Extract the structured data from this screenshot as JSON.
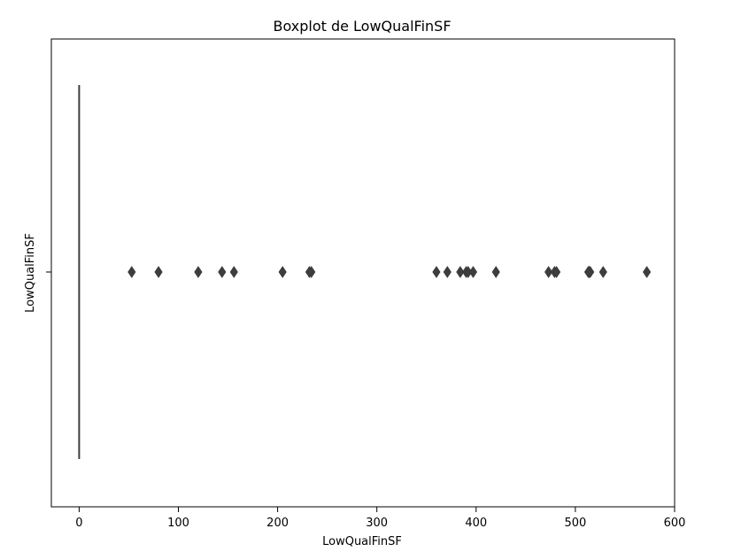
{
  "chart_data": {
    "type": "boxplot",
    "title": "Boxplot de LowQualFinSF",
    "xlabel": "LowQualFinSF",
    "ylabel": "LowQualFinSF",
    "xlim": [
      -28,
      600
    ],
    "xticks": [
      0,
      100,
      200,
      300,
      400,
      500,
      600
    ],
    "grid": false,
    "box": {
      "min": 0,
      "q1": 0,
      "median": 0,
      "q3": 0,
      "max": 0
    },
    "outliers": [
      53,
      80,
      120,
      144,
      156,
      205,
      232,
      234,
      360,
      371,
      384,
      390,
      392,
      397,
      420,
      473,
      479,
      481,
      513,
      514,
      515,
      528,
      572
    ],
    "color": "#3d3d3d"
  }
}
